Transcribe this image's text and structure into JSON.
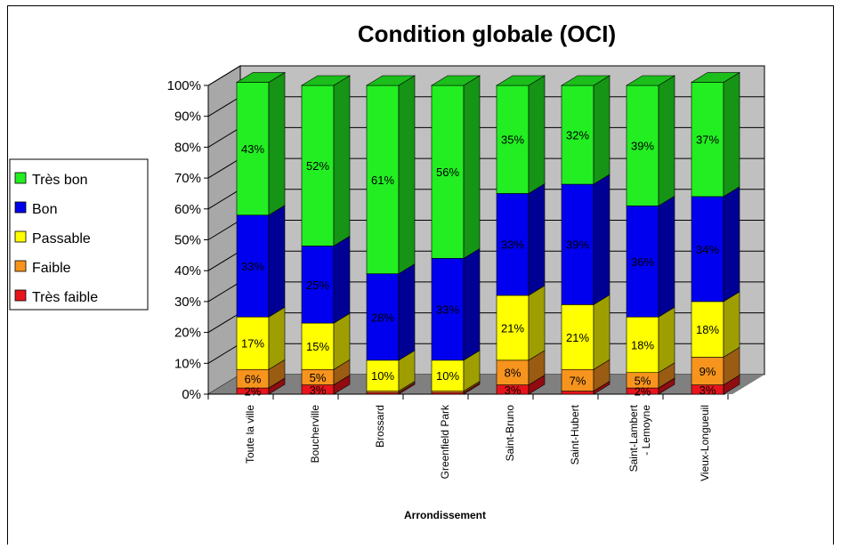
{
  "chart_data": {
    "type": "bar",
    "stacked": true,
    "percent": true,
    "three_d": true,
    "title": "Condition globale (OCI)",
    "xlabel": "Arrondissement",
    "ylabel": "",
    "ylim": [
      0,
      100
    ],
    "yticks": [
      "0%",
      "10%",
      "20%",
      "30%",
      "40%",
      "50%",
      "60%",
      "70%",
      "80%",
      "90%",
      "100%"
    ],
    "grid": true,
    "legend_position": "left",
    "categories": [
      [
        "Toute la ville"
      ],
      [
        "Boucherville"
      ],
      [
        "Brossard"
      ],
      [
        "Greenfield Park"
      ],
      [
        "Saint-Bruno"
      ],
      [
        "Saint-Hubert"
      ],
      [
        "Saint-Lambert",
        "- Lemoyne"
      ],
      [
        "Vieux-Longueuil"
      ]
    ],
    "series": [
      {
        "name": "Très faible",
        "color": "#e8141c",
        "values": [
          2,
          3,
          0.5,
          0.5,
          3,
          1,
          2,
          3
        ],
        "labels": [
          "2%",
          "3%",
          "",
          "",
          "3%",
          "",
          "2%",
          "3%"
        ]
      },
      {
        "name": "Faible",
        "color": "#f7941d",
        "values": [
          6,
          5,
          0.5,
          0.5,
          8,
          7,
          5,
          9
        ],
        "labels": [
          "6%",
          "5%",
          "",
          "",
          "8%",
          "7%",
          "5%",
          "9%"
        ]
      },
      {
        "name": "Passable",
        "color": "#ffff00",
        "values": [
          17,
          15,
          10,
          10,
          21,
          21,
          18,
          18
        ],
        "labels": [
          "17%",
          "15%",
          "10%",
          "10%",
          "21%",
          "21%",
          "18%",
          "18%"
        ]
      },
      {
        "name": "Bon",
        "color": "#0000ee",
        "values": [
          33,
          25,
          28,
          33,
          33,
          39,
          36,
          34
        ],
        "labels": [
          "33%",
          "25%",
          "28%",
          "33%",
          "33%",
          "39%",
          "36%",
          "34%"
        ]
      },
      {
        "name": "Très bon",
        "color": "#22ee22",
        "values": [
          43,
          52,
          61,
          56,
          35,
          32,
          39,
          37
        ],
        "labels": [
          "43%",
          "52%",
          "61%",
          "56%",
          "35%",
          "32%",
          "39%",
          "37%"
        ]
      }
    ]
  }
}
